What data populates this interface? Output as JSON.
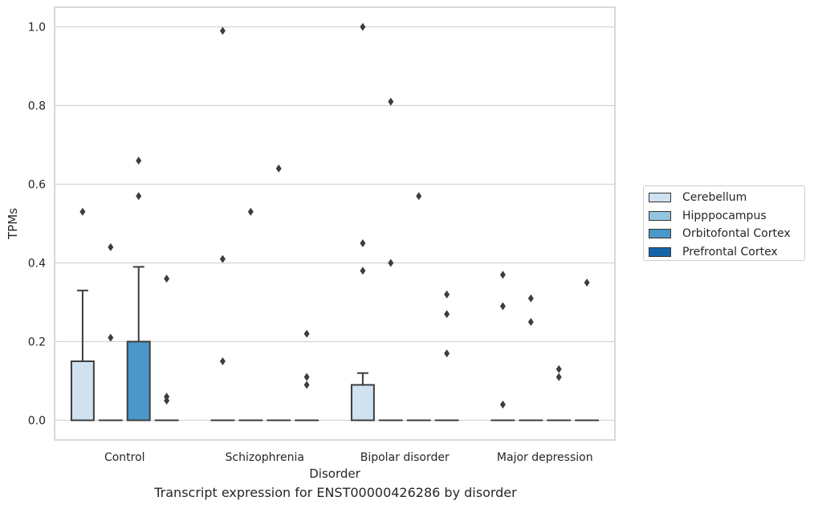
{
  "chart_data": {
    "type": "box",
    "caption": "Transcript expression for ENST00000426286 by disorder",
    "xlabel": "Disorder",
    "ylabel": "TPMs",
    "ylim": [
      -0.05,
      1.05
    ],
    "yticks": [
      "0.0",
      "0.2",
      "0.4",
      "0.6",
      "0.8",
      "1.0"
    ],
    "categories": [
      "Control",
      "Schizophrenia",
      "Bipolar disorder",
      "Major depression"
    ],
    "grid": true,
    "legend_position": "right",
    "series": [
      {
        "name": "Cerebellum",
        "color": "#d0e1f2",
        "boxes": [
          {
            "q1": 0.0,
            "median": 0.0,
            "q3": 0.15,
            "whisker_low": 0.0,
            "whisker_high": 0.33,
            "outliers": [
              0.53
            ]
          },
          {
            "q1": 0.0,
            "median": 0.0,
            "q3": 0.0,
            "whisker_low": 0.0,
            "whisker_high": 0.0,
            "outliers": [
              0.99,
              0.41,
              0.15
            ]
          },
          {
            "q1": 0.0,
            "median": 0.0,
            "q3": 0.09,
            "whisker_low": 0.0,
            "whisker_high": 0.12,
            "outliers": [
              1.0,
              0.45,
              0.38
            ]
          },
          {
            "q1": 0.0,
            "median": 0.0,
            "q3": 0.0,
            "whisker_low": 0.0,
            "whisker_high": 0.0,
            "outliers": [
              0.37,
              0.29,
              0.04
            ]
          }
        ]
      },
      {
        "name": "Hipppocampus",
        "color": "#94c4df",
        "boxes": [
          {
            "q1": 0.0,
            "median": 0.0,
            "q3": 0.0,
            "whisker_low": 0.0,
            "whisker_high": 0.0,
            "outliers": [
              0.44,
              0.21
            ]
          },
          {
            "q1": 0.0,
            "median": 0.0,
            "q3": 0.0,
            "whisker_low": 0.0,
            "whisker_high": 0.0,
            "outliers": [
              0.53
            ]
          },
          {
            "q1": 0.0,
            "median": 0.0,
            "q3": 0.0,
            "whisker_low": 0.0,
            "whisker_high": 0.0,
            "outliers": [
              0.81,
              0.4
            ]
          },
          {
            "q1": 0.0,
            "median": 0.0,
            "q3": 0.0,
            "whisker_low": 0.0,
            "whisker_high": 0.0,
            "outliers": [
              0.31,
              0.25
            ]
          }
        ]
      },
      {
        "name": "Orbitofontal Cortex",
        "color": "#4a98c9",
        "boxes": [
          {
            "q1": 0.0,
            "median": 0.0,
            "q3": 0.2,
            "whisker_low": 0.0,
            "whisker_high": 0.39,
            "outliers": [
              0.66,
              0.57
            ]
          },
          {
            "q1": 0.0,
            "median": 0.0,
            "q3": 0.0,
            "whisker_low": 0.0,
            "whisker_high": 0.0,
            "outliers": [
              0.64
            ]
          },
          {
            "q1": 0.0,
            "median": 0.0,
            "q3": 0.0,
            "whisker_low": 0.0,
            "whisker_high": 0.0,
            "outliers": [
              0.57
            ]
          },
          {
            "q1": 0.0,
            "median": 0.0,
            "q3": 0.0,
            "whisker_low": 0.0,
            "whisker_high": 0.0,
            "outliers": [
              0.13,
              0.11
            ]
          }
        ]
      },
      {
        "name": "Prefrontal Cortex",
        "color": "#1764ab",
        "boxes": [
          {
            "q1": 0.0,
            "median": 0.0,
            "q3": 0.0,
            "whisker_low": 0.0,
            "whisker_high": 0.0,
            "outliers": [
              0.36,
              0.06,
              0.05
            ]
          },
          {
            "q1": 0.0,
            "median": 0.0,
            "q3": 0.0,
            "whisker_low": 0.0,
            "whisker_high": 0.0,
            "outliers": [
              0.22,
              0.11,
              0.09
            ]
          },
          {
            "q1": 0.0,
            "median": 0.0,
            "q3": 0.0,
            "whisker_low": 0.0,
            "whisker_high": 0.0,
            "outliers": [
              0.32,
              0.27,
              0.17
            ]
          },
          {
            "q1": 0.0,
            "median": 0.0,
            "q3": 0.0,
            "whisker_low": 0.0,
            "whisker_high": 0.0,
            "outliers": [
              0.35
            ]
          }
        ]
      }
    ]
  }
}
